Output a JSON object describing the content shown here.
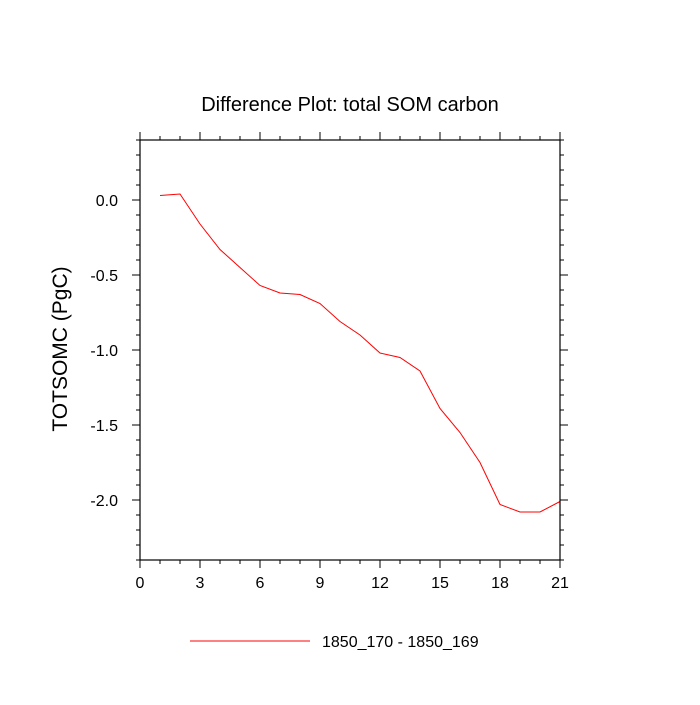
{
  "chart_data": {
    "type": "line",
    "title": "Difference Plot: total SOM carbon",
    "xlabel": "",
    "ylabel": "TOTSOMC  (PgC)",
    "xlim": [
      0,
      21
    ],
    "ylim": [
      -2.4,
      0.4
    ],
    "x_ticks": [
      0,
      3,
      6,
      9,
      12,
      15,
      18,
      21
    ],
    "x_tick_labels": [
      "0",
      "3",
      "6",
      "9",
      "12",
      "15",
      "18",
      "21"
    ],
    "y_ticks": [
      0.0,
      -0.5,
      -1.0,
      -1.5,
      -2.0
    ],
    "y_tick_labels": [
      "0.0",
      "-0.5",
      "-1.0",
      "-1.5",
      "-2.0"
    ],
    "grid": false,
    "legend_position": "bottom-center",
    "series": [
      {
        "name": "1850_170 - 1850_169",
        "color": "#ff0000",
        "x": [
          1,
          2,
          3,
          4,
          5,
          6,
          7,
          8,
          9,
          10,
          11,
          12,
          13,
          14,
          15,
          16,
          17,
          18,
          19,
          20,
          21
        ],
        "y": [
          0.03,
          0.04,
          -0.16,
          -0.33,
          -0.45,
          -0.57,
          -0.62,
          -0.63,
          -0.69,
          -0.81,
          -0.9,
          -1.02,
          -1.05,
          -1.14,
          -1.39,
          -1.55,
          -1.75,
          -2.03,
          -2.08,
          -2.08,
          -2.01
        ]
      }
    ]
  }
}
